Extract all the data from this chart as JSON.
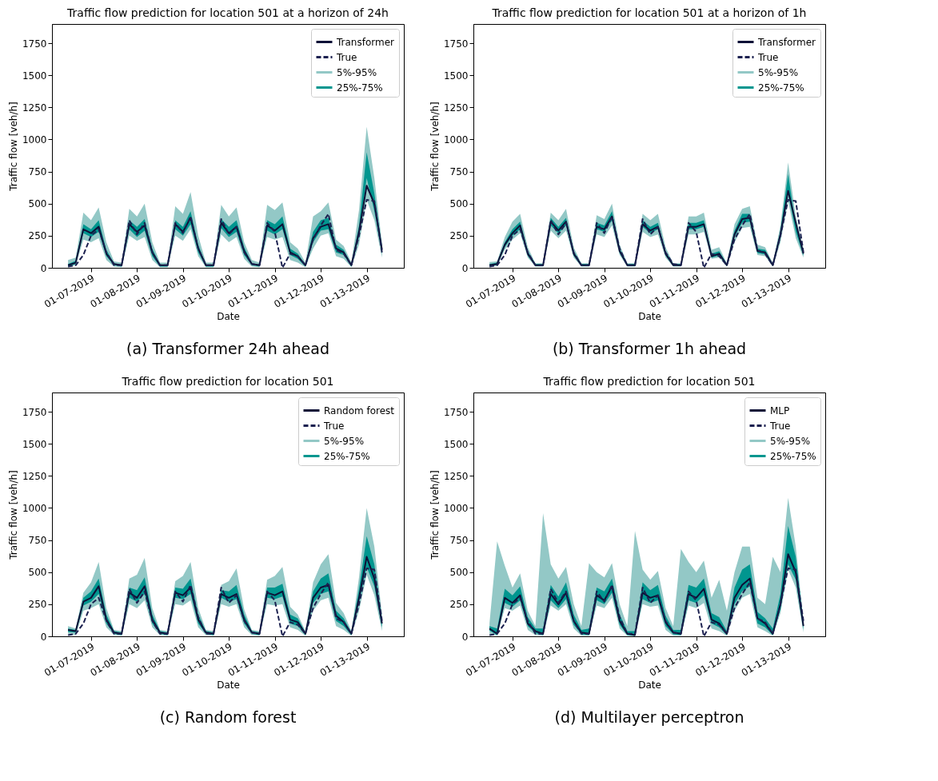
{
  "chart_data": [
    {
      "type": "line",
      "title": "Traffic flow prediction for location 501 at a horizon of 24h",
      "xlabel": "Date",
      "ylabel": "Traffic flow [veh/h]",
      "legend": "top right",
      "annotations": [
        "(a) Transformer 24h ahead"
      ],
      "x": [
        "2019-01-06T12:00",
        "2019-01-06T16:00",
        "2019-01-06T20:00",
        "2019-01-07T00:00",
        "2019-01-07T04:00",
        "2019-01-07T08:00",
        "2019-01-07T12:00",
        "2019-01-07T16:00",
        "2019-01-07T20:00",
        "2019-01-08T00:00",
        "2019-01-08T04:00",
        "2019-01-08T08:00",
        "2019-01-08T12:00",
        "2019-01-08T16:00",
        "2019-01-08T20:00",
        "2019-01-09T00:00",
        "2019-01-09T04:00",
        "2019-01-09T08:00",
        "2019-01-09T12:00",
        "2019-01-09T16:00",
        "2019-01-09T20:00",
        "2019-01-10T00:00",
        "2019-01-10T04:00",
        "2019-01-10T08:00",
        "2019-01-10T12:00",
        "2019-01-10T16:00",
        "2019-01-10T20:00",
        "2019-01-11T00:00",
        "2019-01-11T04:00",
        "2019-01-11T08:00",
        "2019-01-11T12:00",
        "2019-01-11T16:00",
        "2019-01-11T20:00",
        "2019-01-12T00:00",
        "2019-01-12T04:00",
        "2019-01-12T08:00",
        "2019-01-12T12:00",
        "2019-01-12T16:00",
        "2019-01-12T20:00",
        "2019-01-13T00:00",
        "2019-01-13T04:00",
        "2019-01-13T08:00"
      ],
      "xlim": [
        "2019-01-06T03:36",
        "2019-01-13T19:24"
      ],
      "xticks": [
        {
          "value": "2019-01-07",
          "label": "01-07-2019"
        },
        {
          "value": "2019-01-08",
          "label": "01-08-2019"
        },
        {
          "value": "2019-01-09",
          "label": "01-09-2019"
        },
        {
          "value": "2019-01-10",
          "label": "01-10-2019"
        },
        {
          "value": "2019-01-11",
          "label": "01-11-2019"
        },
        {
          "value": "2019-01-12",
          "label": "01-12-2019"
        },
        {
          "value": "2019-01-13",
          "label": "01-13-2019"
        }
      ],
      "ylim": [
        0,
        1900
      ],
      "yticks": [
        0,
        250,
        500,
        750,
        1000,
        1250,
        1500,
        1750
      ],
      "series": [
        {
          "name": "Transformer",
          "color": "#0d1137",
          "line_style": "solid",
          "values": [
            20,
            40,
            300,
            270,
            320,
            110,
            30,
            20,
            340,
            280,
            330,
            120,
            20,
            20,
            340,
            280,
            390,
            150,
            20,
            20,
            350,
            270,
            320,
            130,
            30,
            20,
            330,
            290,
            340,
            120,
            90,
            20,
            230,
            320,
            340,
            150,
            120,
            20,
            280,
            640,
            500,
            140
          ]
        },
        {
          "name": "True",
          "color": "#1c2150",
          "line_style": "dashed",
          "values": [
            10,
            20,
            100,
            250,
            300,
            120,
            20,
            20,
            370,
            260,
            350,
            120,
            20,
            20,
            350,
            270,
            400,
            150,
            20,
            20,
            380,
            260,
            320,
            120,
            30,
            20,
            350,
            280,
            0,
            110,
            90,
            20,
            220,
            330,
            420,
            140,
            110,
            20,
            250,
            530,
            520,
            120
          ]
        },
        {
          "name": "5%-95%",
          "type": "area",
          "color": "#93c8c6",
          "lower": [
            5,
            20,
            220,
            200,
            230,
            60,
            10,
            5,
            250,
            210,
            240,
            60,
            5,
            5,
            250,
            210,
            300,
            90,
            5,
            5,
            260,
            200,
            240,
            70,
            10,
            5,
            240,
            220,
            240,
            60,
            40,
            5,
            150,
            250,
            270,
            90,
            70,
            5,
            180,
            530,
            370,
            80
          ],
          "values": [
            null,
            null,
            null,
            null,
            null,
            null,
            null,
            null,
            null,
            null,
            null,
            null,
            null,
            null,
            null,
            null,
            null,
            null,
            null,
            null,
            null,
            null,
            null,
            null,
            null,
            null,
            null,
            null,
            null,
            null,
            null,
            null,
            null,
            null,
            null,
            null,
            null,
            null,
            null,
            null,
            null,
            null
          ],
          "upper": [
            60,
            80,
            430,
            370,
            470,
            200,
            50,
            40,
            460,
            400,
            500,
            200,
            40,
            40,
            480,
            420,
            590,
            250,
            40,
            40,
            490,
            400,
            470,
            200,
            60,
            40,
            490,
            450,
            510,
            200,
            150,
            40,
            400,
            440,
            510,
            220,
            170,
            40,
            450,
            1100,
            700,
            190
          ]
        },
        {
          "name": "25%-75%",
          "type": "area",
          "color": "#01968f",
          "lower": [
            10,
            30,
            270,
            240,
            280,
            90,
            20,
            10,
            300,
            240,
            290,
            90,
            10,
            10,
            300,
            250,
            340,
            120,
            10,
            10,
            310,
            240,
            280,
            100,
            20,
            10,
            290,
            260,
            300,
            100,
            70,
            10,
            200,
            290,
            300,
            120,
            100,
            10,
            240,
            700,
            440,
            110
          ],
          "values": [
            null,
            null,
            null,
            null,
            null,
            null,
            null,
            null,
            null,
            null,
            null,
            null,
            null,
            null,
            null,
            null,
            null,
            null,
            null,
            null,
            null,
            null,
            null,
            null,
            null,
            null,
            null,
            null,
            null,
            null,
            null,
            null,
            null,
            null,
            null,
            null,
            null,
            null,
            null,
            null,
            null,
            null
          ],
          "upper": [
            30,
            55,
            340,
            300,
            370,
            140,
            35,
            25,
            370,
            320,
            380,
            150,
            25,
            25,
            370,
            320,
            440,
            180,
            25,
            25,
            380,
            320,
            370,
            160,
            35,
            25,
            370,
            340,
            400,
            150,
            110,
            25,
            280,
            370,
            390,
            180,
            140,
            25,
            330,
            900,
            580,
            160
          ]
        }
      ]
    },
    {
      "type": "line",
      "title": "Traffic flow prediction for location 501 at a horizon of 1h",
      "xlabel": "Date",
      "ylabel": "Traffic flow [veh/h]",
      "legend": "top right",
      "annotations": [
        "(b) Transformer 1h ahead"
      ],
      "x": [
        "2019-01-06T12:00",
        "2019-01-06T16:00",
        "2019-01-06T20:00",
        "2019-01-07T00:00",
        "2019-01-07T04:00",
        "2019-01-07T08:00",
        "2019-01-07T12:00",
        "2019-01-07T16:00",
        "2019-01-07T20:00",
        "2019-01-08T00:00",
        "2019-01-08T04:00",
        "2019-01-08T08:00",
        "2019-01-08T12:00",
        "2019-01-08T16:00",
        "2019-01-08T20:00",
        "2019-01-09T00:00",
        "2019-01-09T04:00",
        "2019-01-09T08:00",
        "2019-01-09T12:00",
        "2019-01-09T16:00",
        "2019-01-09T20:00",
        "2019-01-10T00:00",
        "2019-01-10T04:00",
        "2019-01-10T08:00",
        "2019-01-10T12:00",
        "2019-01-10T16:00",
        "2019-01-10T20:00",
        "2019-01-11T00:00",
        "2019-01-11T04:00",
        "2019-01-11T08:00",
        "2019-01-11T12:00",
        "2019-01-11T16:00",
        "2019-01-11T20:00",
        "2019-01-12T00:00",
        "2019-01-12T04:00",
        "2019-01-12T08:00",
        "2019-01-12T12:00",
        "2019-01-12T16:00",
        "2019-01-12T20:00",
        "2019-01-13T00:00",
        "2019-01-13T04:00",
        "2019-01-13T08:00"
      ],
      "xlim": [
        "2019-01-06T03:36",
        "2019-01-13T19:24"
      ],
      "xticks": [
        {
          "value": "2019-01-07",
          "label": "01-07-2019"
        },
        {
          "value": "2019-01-08",
          "label": "01-08-2019"
        },
        {
          "value": "2019-01-09",
          "label": "01-09-2019"
        },
        {
          "value": "2019-01-10",
          "label": "01-10-2019"
        },
        {
          "value": "2019-01-11",
          "label": "01-11-2019"
        },
        {
          "value": "2019-01-12",
          "label": "01-12-2019"
        },
        {
          "value": "2019-01-13",
          "label": "01-13-2019"
        }
      ],
      "ylim": [
        0,
        1900
      ],
      "yticks": [
        0,
        250,
        500,
        750,
        1000,
        1250,
        1500,
        1750
      ],
      "series": [
        {
          "name": "Transformer",
          "color": "#0d1137",
          "line_style": "solid",
          "values": [
            20,
            30,
            180,
            270,
            330,
            110,
            20,
            20,
            360,
            290,
            360,
            110,
            20,
            20,
            320,
            300,
            400,
            130,
            20,
            20,
            340,
            290,
            320,
            110,
            20,
            20,
            320,
            320,
            340,
            90,
            110,
            20,
            260,
            380,
            390,
            130,
            120,
            20,
            260,
            600,
            350,
            110
          ]
        },
        {
          "name": "True",
          "color": "#1c2150",
          "line_style": "dashed",
          "values": [
            10,
            20,
            100,
            250,
            300,
            120,
            20,
            20,
            370,
            260,
            350,
            120,
            20,
            20,
            350,
            270,
            400,
            150,
            20,
            20,
            380,
            260,
            320,
            120,
            30,
            20,
            350,
            280,
            0,
            110,
            90,
            20,
            220,
            330,
            420,
            140,
            110,
            20,
            250,
            530,
            520,
            120
          ]
        },
        {
          "name": "5%-95%",
          "type": "area",
          "color": "#93c8c6",
          "lower": [
            10,
            15,
            140,
            220,
            270,
            80,
            10,
            10,
            290,
            230,
            290,
            80,
            10,
            10,
            260,
            240,
            330,
            100,
            10,
            10,
            280,
            240,
            260,
            80,
            10,
            10,
            260,
            260,
            280,
            70,
            80,
            10,
            200,
            310,
            320,
            100,
            90,
            10,
            200,
            520,
            230,
            80
          ],
          "values": [
            null,
            null,
            null,
            null,
            null,
            null,
            null,
            null,
            null,
            null,
            null,
            null,
            null,
            null,
            null,
            null,
            null,
            null,
            null,
            null,
            null,
            null,
            null,
            null,
            null,
            null,
            null,
            null,
            null,
            null,
            null,
            null,
            null,
            null,
            null,
            null,
            null,
            null,
            null,
            null,
            null,
            null
          ],
          "upper": [
            45,
            50,
            240,
            360,
            420,
            160,
            35,
            35,
            430,
            370,
            460,
            160,
            35,
            35,
            410,
            380,
            500,
            180,
            35,
            35,
            420,
            370,
            420,
            160,
            35,
            35,
            400,
            400,
            430,
            140,
            160,
            35,
            340,
            460,
            480,
            180,
            160,
            35,
            330,
            820,
            400,
            150
          ]
        },
        {
          "name": "25%-75%",
          "type": "area",
          "color": "#01968f",
          "lower": [
            15,
            20,
            160,
            250,
            300,
            95,
            15,
            15,
            330,
            270,
            330,
            95,
            15,
            15,
            300,
            280,
            370,
            115,
            15,
            15,
            320,
            270,
            300,
            95,
            15,
            15,
            300,
            300,
            320,
            80,
            95,
            15,
            240,
            350,
            360,
            115,
            105,
            15,
            240,
            580,
            280,
            95
          ],
          "values": [
            null,
            null,
            null,
            null,
            null,
            null,
            null,
            null,
            null,
            null,
            null,
            null,
            null,
            null,
            null,
            null,
            null,
            null,
            null,
            null,
            null,
            null,
            null,
            null,
            null,
            null,
            null,
            null,
            null,
            null,
            null,
            null,
            null,
            null,
            null,
            null,
            null,
            null,
            null,
            null,
            null,
            null
          ],
          "upper": [
            30,
            40,
            200,
            300,
            360,
            130,
            30,
            30,
            390,
            320,
            390,
            130,
            30,
            30,
            350,
            330,
            440,
            150,
            30,
            30,
            370,
            320,
            350,
            130,
            30,
            30,
            350,
            350,
            370,
            110,
            130,
            30,
            290,
            420,
            420,
            150,
            140,
            30,
            290,
            730,
            330,
            130
          ]
        }
      ]
    },
    {
      "type": "line",
      "title": "Traffic flow prediction for location 501",
      "xlabel": "Date",
      "ylabel": "Traffic flow [veh/h]",
      "legend": "top right",
      "annotations": [
        "(c) Random forest"
      ],
      "x": [
        "2019-01-06T12:00",
        "2019-01-06T16:00",
        "2019-01-06T20:00",
        "2019-01-07T00:00",
        "2019-01-07T04:00",
        "2019-01-07T08:00",
        "2019-01-07T12:00",
        "2019-01-07T16:00",
        "2019-01-07T20:00",
        "2019-01-08T00:00",
        "2019-01-08T04:00",
        "2019-01-08T08:00",
        "2019-01-08T12:00",
        "2019-01-08T16:00",
        "2019-01-08T20:00",
        "2019-01-09T00:00",
        "2019-01-09T04:00",
        "2019-01-09T08:00",
        "2019-01-09T12:00",
        "2019-01-09T16:00",
        "2019-01-09T20:00",
        "2019-01-10T00:00",
        "2019-01-10T04:00",
        "2019-01-10T08:00",
        "2019-01-10T12:00",
        "2019-01-10T16:00",
        "2019-01-10T20:00",
        "2019-01-11T00:00",
        "2019-01-11T04:00",
        "2019-01-11T08:00",
        "2019-01-11T12:00",
        "2019-01-11T16:00",
        "2019-01-11T20:00",
        "2019-01-12T00:00",
        "2019-01-12T04:00",
        "2019-01-12T08:00",
        "2019-01-12T12:00",
        "2019-01-12T16:00",
        "2019-01-12T20:00",
        "2019-01-13T00:00",
        "2019-01-13T04:00",
        "2019-01-13T08:00"
      ],
      "xlim": [
        "2019-01-06T03:36",
        "2019-01-13T19:24"
      ],
      "xticks": [
        {
          "value": "2019-01-07",
          "label": "01-07-2019"
        },
        {
          "value": "2019-01-08",
          "label": "01-08-2019"
        },
        {
          "value": "2019-01-09",
          "label": "01-09-2019"
        },
        {
          "value": "2019-01-10",
          "label": "01-10-2019"
        },
        {
          "value": "2019-01-11",
          "label": "01-11-2019"
        },
        {
          "value": "2019-01-12",
          "label": "01-12-2019"
        },
        {
          "value": "2019-01-13",
          "label": "01-13-2019"
        }
      ],
      "ylim": [
        0,
        1900
      ],
      "yticks": [
        0,
        250,
        500,
        750,
        1000,
        1250,
        1500,
        1750
      ],
      "series": [
        {
          "name": "Random forest",
          "color": "#0d1137",
          "line_style": "solid",
          "values": [
            50,
            40,
            270,
            300,
            390,
            130,
            30,
            20,
            340,
            300,
            390,
            130,
            30,
            20,
            340,
            320,
            380,
            130,
            30,
            20,
            330,
            300,
            330,
            130,
            30,
            20,
            340,
            320,
            350,
            130,
            110,
            20,
            300,
            380,
            400,
            160,
            110,
            20,
            300,
            620,
            450,
            100
          ]
        },
        {
          "name": "True",
          "color": "#1c2150",
          "line_style": "dashed",
          "values": [
            10,
            20,
            100,
            250,
            300,
            120,
            20,
            20,
            370,
            260,
            350,
            120,
            20,
            20,
            350,
            270,
            400,
            150,
            20,
            20,
            380,
            260,
            320,
            120,
            30,
            20,
            350,
            280,
            0,
            110,
            90,
            20,
            220,
            330,
            420,
            140,
            110,
            20,
            250,
            530,
            520,
            120
          ]
        },
        {
          "name": "5%-95%",
          "type": "area",
          "color": "#93c8c6",
          "lower": [
            20,
            10,
            200,
            220,
            250,
            70,
            10,
            5,
            250,
            220,
            280,
            70,
            10,
            5,
            250,
            240,
            280,
            70,
            10,
            5,
            250,
            230,
            250,
            70,
            10,
            5,
            250,
            240,
            250,
            70,
            50,
            5,
            200,
            280,
            300,
            80,
            50,
            5,
            200,
            480,
            320,
            40
          ],
          "values": [
            null,
            null,
            null,
            null,
            null,
            null,
            null,
            null,
            null,
            null,
            null,
            null,
            null,
            null,
            null,
            null,
            null,
            null,
            null,
            null,
            null,
            null,
            null,
            null,
            null,
            null,
            null,
            null,
            null,
            null,
            null,
            null,
            null,
            null,
            null,
            null,
            null,
            null,
            null,
            null,
            null,
            null
          ],
          "upper": [
            80,
            60,
            340,
            420,
            580,
            220,
            50,
            40,
            450,
            480,
            610,
            220,
            50,
            40,
            430,
            470,
            580,
            220,
            50,
            40,
            400,
            430,
            530,
            210,
            50,
            40,
            440,
            470,
            540,
            230,
            170,
            40,
            420,
            560,
            640,
            260,
            180,
            40,
            460,
            1000,
            700,
            170
          ]
        },
        {
          "name": "25%-75%",
          "type": "area",
          "color": "#01968f",
          "lower": [
            35,
            30,
            240,
            270,
            330,
            100,
            20,
            10,
            300,
            270,
            330,
            100,
            20,
            10,
            300,
            290,
            330,
            100,
            20,
            10,
            300,
            270,
            290,
            100,
            20,
            10,
            300,
            290,
            310,
            100,
            80,
            10,
            260,
            330,
            350,
            120,
            80,
            10,
            260,
            540,
            390,
            70
          ],
          "values": [
            null,
            null,
            null,
            null,
            null,
            null,
            null,
            null,
            null,
            null,
            null,
            null,
            null,
            null,
            null,
            null,
            null,
            null,
            null,
            null,
            null,
            null,
            null,
            null,
            null,
            null,
            null,
            null,
            null,
            null,
            null,
            null,
            null,
            null,
            null,
            null,
            null,
            null,
            null,
            null,
            null,
            null
          ],
          "upper": [
            60,
            50,
            300,
            350,
            450,
            170,
            40,
            30,
            380,
            360,
            460,
            170,
            40,
            30,
            380,
            370,
            450,
            170,
            40,
            30,
            360,
            350,
            400,
            170,
            40,
            30,
            380,
            380,
            410,
            170,
            140,
            30,
            350,
            450,
            490,
            200,
            140,
            30,
            370,
            780,
            560,
            130
          ]
        }
      ]
    },
    {
      "type": "line",
      "title": "Traffic flow prediction for location 501",
      "xlabel": "Date",
      "ylabel": "Traffic flow [veh/h]",
      "legend": "top right",
      "annotations": [
        "(d) Multilayer perceptron"
      ],
      "x": [
        "2019-01-06T12:00",
        "2019-01-06T16:00",
        "2019-01-06T20:00",
        "2019-01-07T00:00",
        "2019-01-07T04:00",
        "2019-01-07T08:00",
        "2019-01-07T12:00",
        "2019-01-07T16:00",
        "2019-01-07T20:00",
        "2019-01-08T00:00",
        "2019-01-08T04:00",
        "2019-01-08T08:00",
        "2019-01-08T12:00",
        "2019-01-08T16:00",
        "2019-01-08T20:00",
        "2019-01-09T00:00",
        "2019-01-09T04:00",
        "2019-01-09T08:00",
        "2019-01-09T12:00",
        "2019-01-09T16:00",
        "2019-01-09T20:00",
        "2019-01-10T00:00",
        "2019-01-10T04:00",
        "2019-01-10T08:00",
        "2019-01-10T12:00",
        "2019-01-10T16:00",
        "2019-01-10T20:00",
        "2019-01-11T00:00",
        "2019-01-11T04:00",
        "2019-01-11T08:00",
        "2019-01-11T12:00",
        "2019-01-11T16:00",
        "2019-01-11T20:00",
        "2019-01-12T00:00",
        "2019-01-12T04:00",
        "2019-01-12T08:00",
        "2019-01-12T12:00",
        "2019-01-12T16:00",
        "2019-01-12T20:00",
        "2019-01-13T00:00",
        "2019-01-13T04:00",
        "2019-01-13T08:00"
      ],
      "xlim": [
        "2019-01-06T03:36",
        "2019-01-13T19:24"
      ],
      "xticks": [
        {
          "value": "2019-01-07",
          "label": "01-07-2019"
        },
        {
          "value": "2019-01-08",
          "label": "01-08-2019"
        },
        {
          "value": "2019-01-09",
          "label": "01-09-2019"
        },
        {
          "value": "2019-01-10",
          "label": "01-10-2019"
        },
        {
          "value": "2019-01-11",
          "label": "01-11-2019"
        },
        {
          "value": "2019-01-12",
          "label": "01-12-2019"
        },
        {
          "value": "2019-01-13",
          "label": "01-13-2019"
        }
      ],
      "ylim": [
        0,
        1900
      ],
      "yticks": [
        0,
        250,
        500,
        750,
        1000,
        1250,
        1500,
        1750
      ],
      "series": [
        {
          "name": "MLP",
          "color": "#0d1137",
          "line_style": "solid",
          "values": [
            60,
            20,
            300,
            260,
            320,
            100,
            40,
            20,
            330,
            250,
            340,
            120,
            30,
            20,
            320,
            280,
            390,
            120,
            20,
            10,
            340,
            300,
            320,
            110,
            30,
            20,
            330,
            300,
            370,
            130,
            100,
            20,
            300,
            400,
            450,
            140,
            100,
            20,
            250,
            640,
            500,
            80
          ]
        },
        {
          "name": "True",
          "color": "#1c2150",
          "line_style": "dashed",
          "values": [
            10,
            20,
            100,
            250,
            300,
            120,
            20,
            20,
            370,
            260,
            350,
            120,
            20,
            20,
            350,
            270,
            400,
            150,
            20,
            20,
            380,
            260,
            320,
            120,
            30,
            20,
            350,
            280,
            0,
            110,
            90,
            20,
            220,
            330,
            420,
            140,
            110,
            20,
            250,
            530,
            520,
            120
          ]
        },
        {
          "name": "5%-95%",
          "type": "area",
          "color": "#93c8c6",
          "lower": [
            20,
            5,
            220,
            200,
            240,
            50,
            10,
            5,
            240,
            200,
            250,
            60,
            5,
            5,
            240,
            220,
            300,
            60,
            5,
            0,
            250,
            230,
            240,
            50,
            5,
            5,
            240,
            220,
            260,
            60,
            40,
            5,
            200,
            300,
            330,
            70,
            40,
            5,
            180,
            520,
            380,
            30
          ],
          "values": [
            null,
            null,
            null,
            null,
            null,
            null,
            null,
            null,
            null,
            null,
            null,
            null,
            null,
            null,
            null,
            null,
            null,
            null,
            null,
            null,
            null,
            null,
            null,
            null,
            null,
            null,
            null,
            null,
            null,
            null,
            null,
            null,
            null,
            null,
            null,
            null,
            null,
            null,
            null,
            null,
            null,
            null
          ],
          "upper": [
            100,
            740,
            550,
            380,
            490,
            200,
            80,
            960,
            560,
            450,
            540,
            250,
            80,
            570,
            500,
            460,
            570,
            250,
            80,
            820,
            520,
            440,
            510,
            220,
            80,
            680,
            580,
            500,
            590,
            300,
            440,
            200,
            500,
            700,
            700,
            300,
            250,
            620,
            500,
            1080,
            700,
            120
          ]
        },
        {
          "name": "25%-75%",
          "type": "area",
          "color": "#01968f",
          "lower": [
            45,
            10,
            260,
            230,
            280,
            80,
            25,
            10,
            280,
            220,
            290,
            90,
            15,
            10,
            280,
            250,
            340,
            90,
            10,
            5,
            290,
            260,
            280,
            80,
            15,
            10,
            280,
            260,
            320,
            100,
            70,
            10,
            250,
            350,
            390,
            100,
            70,
            10,
            210,
            560,
            440,
            55
          ],
          "values": [
            null,
            null,
            null,
            null,
            null,
            null,
            null,
            null,
            null,
            null,
            null,
            null,
            null,
            null,
            null,
            null,
            null,
            null,
            null,
            null,
            null,
            null,
            null,
            null,
            null,
            null,
            null,
            null,
            null,
            null,
            null,
            null,
            null,
            null,
            null,
            null,
            null,
            null,
            null,
            null,
            null,
            null
          ],
          "upper": [
            80,
            60,
            370,
            320,
            390,
            150,
            60,
            60,
            400,
            310,
            420,
            170,
            50,
            60,
            380,
            350,
            450,
            170,
            40,
            40,
            420,
            360,
            400,
            160,
            50,
            50,
            400,
            380,
            450,
            180,
            150,
            40,
            380,
            520,
            560,
            190,
            140,
            60,
            330,
            860,
            620,
            110
          ]
        }
      ]
    }
  ]
}
